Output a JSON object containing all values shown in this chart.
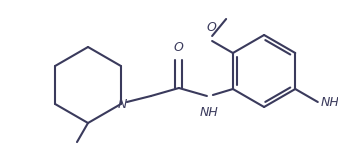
{
  "bg_color": "#ffffff",
  "line_color": "#3a3a5c",
  "line_width": 1.5,
  "font_size": 9.0,
  "figsize": [
    3.38,
    1.65
  ],
  "dpi": 100,
  "xlim": [
    0,
    338
  ],
  "ylim": [
    0,
    165
  ]
}
